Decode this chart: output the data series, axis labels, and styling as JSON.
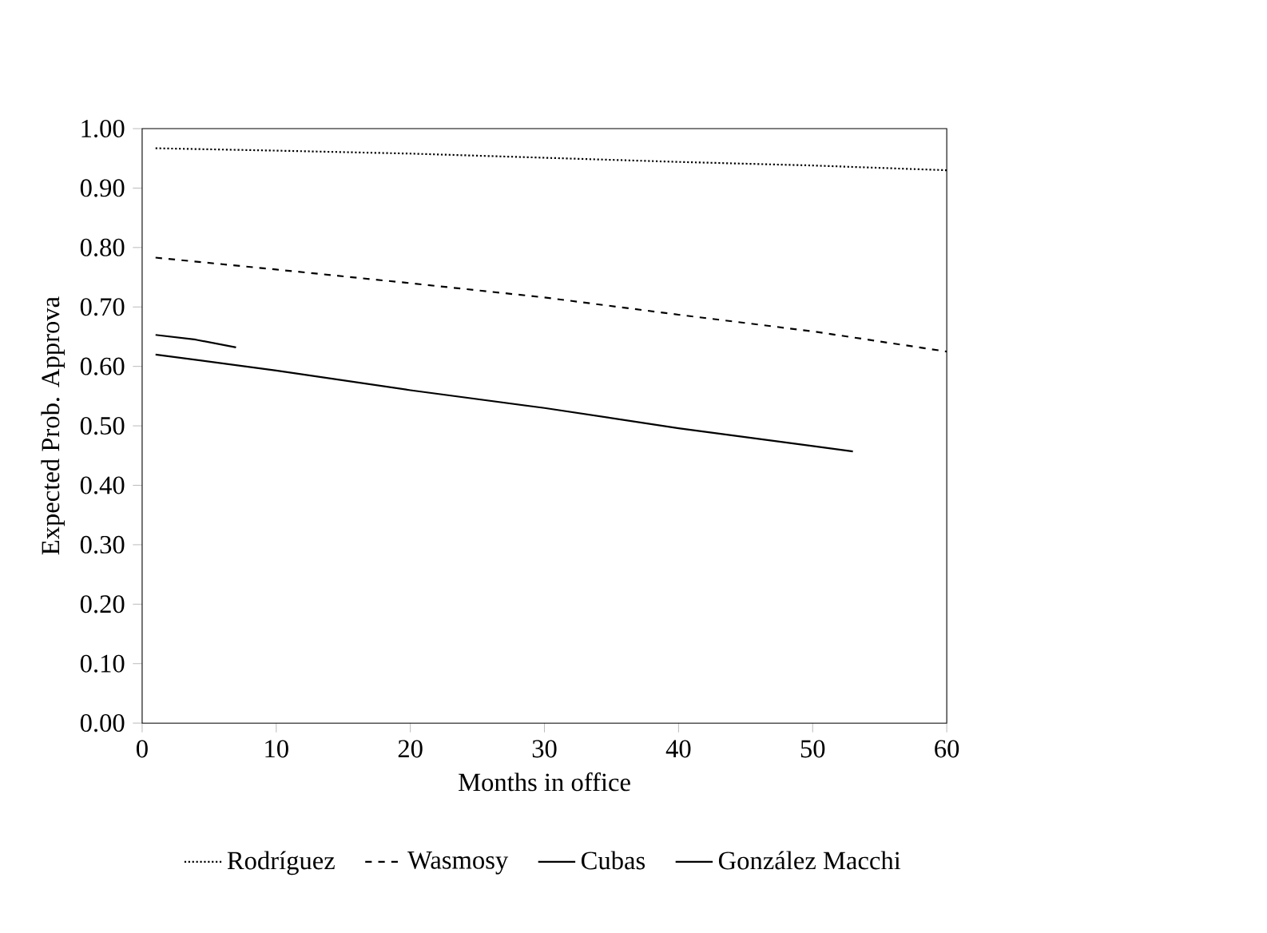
{
  "chart_data": {
    "type": "line",
    "xlabel": "Months in office",
    "ylabel": "Expected Prob. Approva",
    "xlim": [
      0,
      60
    ],
    "xticks": [
      0,
      10,
      20,
      30,
      40,
      50,
      60
    ],
    "ylim": [
      0,
      1
    ],
    "yticks": [
      {
        "value": 0,
        "label": "0.00"
      },
      {
        "value": 0.1,
        "label": "0.10"
      },
      {
        "value": 0.2,
        "label": "0.20"
      },
      {
        "value": 0.3,
        "label": "0.30"
      },
      {
        "value": 0.4,
        "label": "0.40"
      },
      {
        "value": 0.5,
        "label": "0.50"
      },
      {
        "value": 0.6,
        "label": "0.60"
      },
      {
        "value": 0.7,
        "label": "0.70"
      },
      {
        "value": 0.8,
        "label": "0.80"
      },
      {
        "value": 0.9,
        "label": "0.90"
      },
      {
        "value": 1,
        "label": "1.00"
      }
    ],
    "grid": false,
    "legend": "bottom",
    "marker": "none",
    "series": [
      {
        "name": "Rodríguez",
        "color": "#000000",
        "line_style": "dotted",
        "x": [
          1,
          10,
          20,
          30,
          40,
          50,
          60
        ],
        "values": [
          0.967,
          0.963,
          0.958,
          0.951,
          0.944,
          0.938,
          0.93
        ]
      },
      {
        "name": "Wasmosy",
        "color": "#000000",
        "line_style": "dashed",
        "x": [
          1,
          10,
          20,
          30,
          40,
          50,
          60
        ],
        "values": [
          0.783,
          0.763,
          0.74,
          0.716,
          0.687,
          0.659,
          0.625
        ]
      },
      {
        "name": "Cubas",
        "color": "#000000",
        "line_style": "solid",
        "x": [
          1,
          4,
          7
        ],
        "values": [
          0.653,
          0.645,
          0.632
        ]
      },
      {
        "name": "González Macchi",
        "color": "#000000",
        "line_style": "solid",
        "x": [
          1,
          10,
          20,
          30,
          40,
          50,
          53
        ],
        "values": [
          0.62,
          0.593,
          0.56,
          0.53,
          0.496,
          0.466,
          0.457
        ]
      }
    ]
  }
}
